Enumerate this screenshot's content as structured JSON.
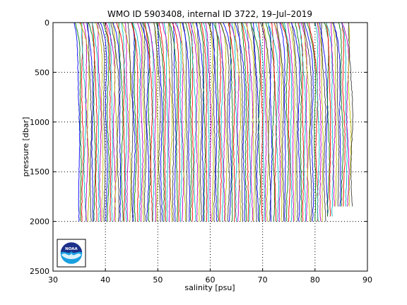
{
  "chart_data": {
    "type": "line",
    "title": "WMO ID 5903408, internal ID 3722, 19–Jul–2019",
    "xlabel": "salinity [psu]",
    "ylabel": "pressure [dbar]",
    "xlim": [
      30,
      90
    ],
    "ylim": [
      0,
      2500
    ],
    "y_reversed": true,
    "grid": true,
    "grid_style": "dotted",
    "x_ticks": [
      30,
      40,
      50,
      60,
      70,
      80,
      90
    ],
    "y_ticks": [
      0,
      500,
      1000,
      1500,
      2000,
      2500
    ],
    "profiles": {
      "count": 140,
      "offset_psu": 0.375,
      "first_surface_salinity": 33.9,
      "deep_salinity_range": [
        34.9,
        35.0
      ],
      "surface_pressure": 0,
      "bottom_pressure_main": 2000,
      "bottom_pressure_last": 1850,
      "colors": [
        "#0000ff",
        "#008000",
        "#ff0000",
        "#00bfbf",
        "#bf00bf",
        "#bfbf00",
        "#404040"
      ]
    }
  },
  "logo": {
    "text": "NOAA",
    "colors": {
      "top": "#1c2f8a",
      "bottom": "#1aa0e0",
      "ring": "#ffffff"
    }
  }
}
